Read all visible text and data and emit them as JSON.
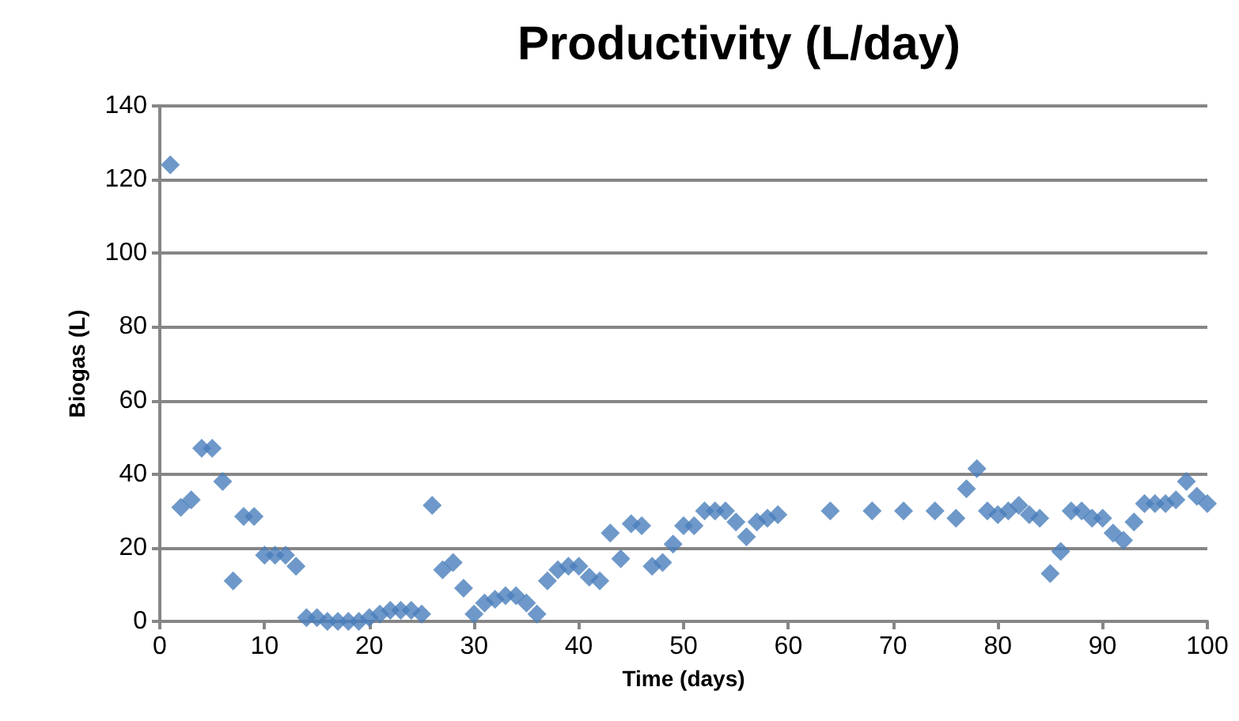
{
  "chart_data": {
    "type": "scatter",
    "title": "Productivity (L/day)",
    "xlabel": "Time (days)",
    "ylabel": "Biogas (L)",
    "series": [
      {
        "color": "#4a7ebb",
        "x": [
          1,
          2,
          3,
          4,
          5,
          6,
          7,
          8,
          9,
          10,
          11,
          12,
          13,
          14,
          15,
          16,
          17,
          18,
          19,
          20,
          21,
          22,
          23,
          24,
          25,
          26,
          27,
          28,
          29,
          30,
          31,
          32,
          33,
          34,
          35,
          36,
          37,
          38,
          39,
          40,
          41,
          42,
          43,
          44,
          45,
          46,
          47,
          48,
          49,
          50,
          51,
          52,
          53,
          54,
          55,
          56,
          57,
          58,
          59,
          64,
          68,
          71,
          74,
          76,
          77,
          78,
          79,
          80,
          81,
          82,
          83,
          84,
          85,
          86,
          87,
          88,
          89,
          90,
          91,
          92,
          93,
          94,
          95,
          96,
          97,
          98,
          99,
          100
        ],
        "values": [
          124,
          31,
          33,
          47,
          47,
          38,
          11,
          28.5,
          28.5,
          18,
          18,
          18,
          15,
          1,
          1,
          0,
          0,
          0,
          0,
          1,
          2,
          3,
          3,
          3,
          2,
          31.5,
          14,
          16,
          9,
          2,
          5,
          6,
          7,
          7,
          5,
          2,
          11,
          14,
          15,
          15,
          12,
          11,
          24,
          17,
          26.5,
          26,
          15,
          16,
          21,
          26,
          26,
          30,
          30,
          30,
          27,
          23,
          27,
          28,
          29,
          30,
          30,
          30,
          30,
          28,
          36,
          41.5,
          30,
          29,
          30,
          31.5,
          29,
          28,
          13,
          19,
          30,
          30,
          28,
          28,
          24,
          22,
          27,
          32,
          32,
          32,
          33,
          38,
          34,
          32
        ]
      }
    ],
    "xlim": [
      0,
      100
    ],
    "xticks": [
      0,
      10,
      20,
      30,
      40,
      50,
      60,
      70,
      80,
      90,
      100
    ],
    "ylim": [
      0,
      140
    ],
    "yticks": [
      0,
      20,
      40,
      60,
      80,
      100,
      120,
      140
    ],
    "grid": "y",
    "marker": "diamond"
  }
}
